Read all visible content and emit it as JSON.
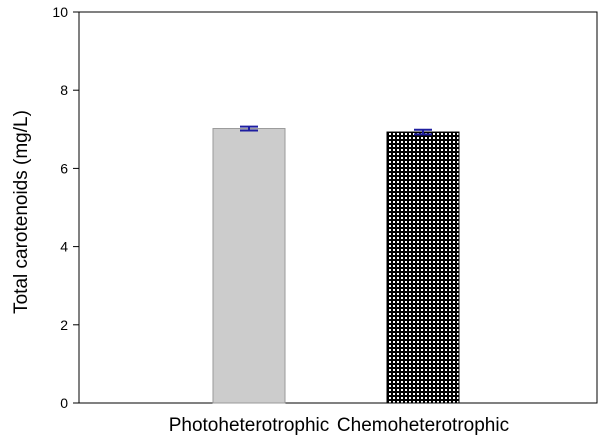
{
  "chart_data": {
    "type": "bar",
    "title": "",
    "xlabel": "",
    "ylabel": "Total carotenoids (mg/L)",
    "ylim": [
      0,
      10
    ],
    "yticks": [
      0,
      2,
      4,
      6,
      8,
      10
    ],
    "grid": false,
    "categories": [
      "Photoheterotrophic",
      "Chemoheterotrophic"
    ],
    "values": [
      7.02,
      6.93
    ],
    "errors": [
      0.05,
      0.06
    ],
    "bar_fills": [
      "light-gray-solid",
      "black-white-dot-pattern"
    ],
    "colors": {
      "bar_1": "#cccccc",
      "bar_1_edge": "#9a9a9a",
      "bar_2": "#000000",
      "bar_2_pattern": "#ffffff",
      "error_bar": "#1e1ea0"
    }
  }
}
